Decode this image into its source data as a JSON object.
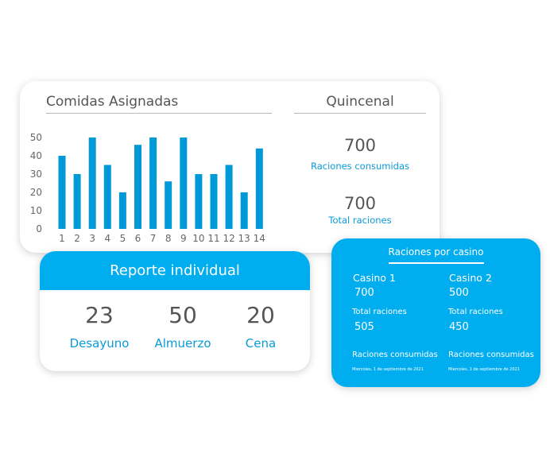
{
  "asignadas": {
    "title": "Comidas Asignadas"
  },
  "quincenal": {
    "title": "Quincenal",
    "consumidas_value": "700",
    "consumidas_label": "Raciones consumidas",
    "total_value": "700",
    "total_label": "Total raciones"
  },
  "chart_data": {
    "type": "bar",
    "categories": [
      "1",
      "2",
      "3",
      "4",
      "5",
      "6",
      "7",
      "8",
      "9",
      "10",
      "11",
      "12",
      "13",
      "14"
    ],
    "values": [
      40,
      30,
      50,
      35,
      20,
      46,
      50,
      26,
      50,
      30,
      30,
      35,
      20,
      44
    ],
    "yticks": [
      0,
      10,
      20,
      30,
      40,
      50
    ],
    "ylim": [
      0,
      50
    ],
    "color": "#0099d8",
    "grid": false
  },
  "reporte": {
    "title": "Reporte individual",
    "items": [
      {
        "value": "23",
        "label": "Desayuno"
      },
      {
        "value": "50",
        "label": "Almuerzo"
      },
      {
        "value": "20",
        "label": "Cena"
      }
    ]
  },
  "casino": {
    "title": "Raciones por casino",
    "casinos": [
      {
        "name": "Casino 1",
        "value": "700",
        "total_label": "Total raciones",
        "total_value": "505",
        "consumidas_label": "Raciones consumidas",
        "date": "Miercoles, 1 de septiembre de 2021"
      },
      {
        "name": "Casino 2",
        "value": "500",
        "total_label": "Total raciones",
        "total_value": "450",
        "consumidas_label": "Raciones consumidas",
        "date": "Miercoles, 1 de septiembre de 2021"
      }
    ]
  },
  "colors": {
    "accent": "#00adee",
    "text": "#555555"
  }
}
